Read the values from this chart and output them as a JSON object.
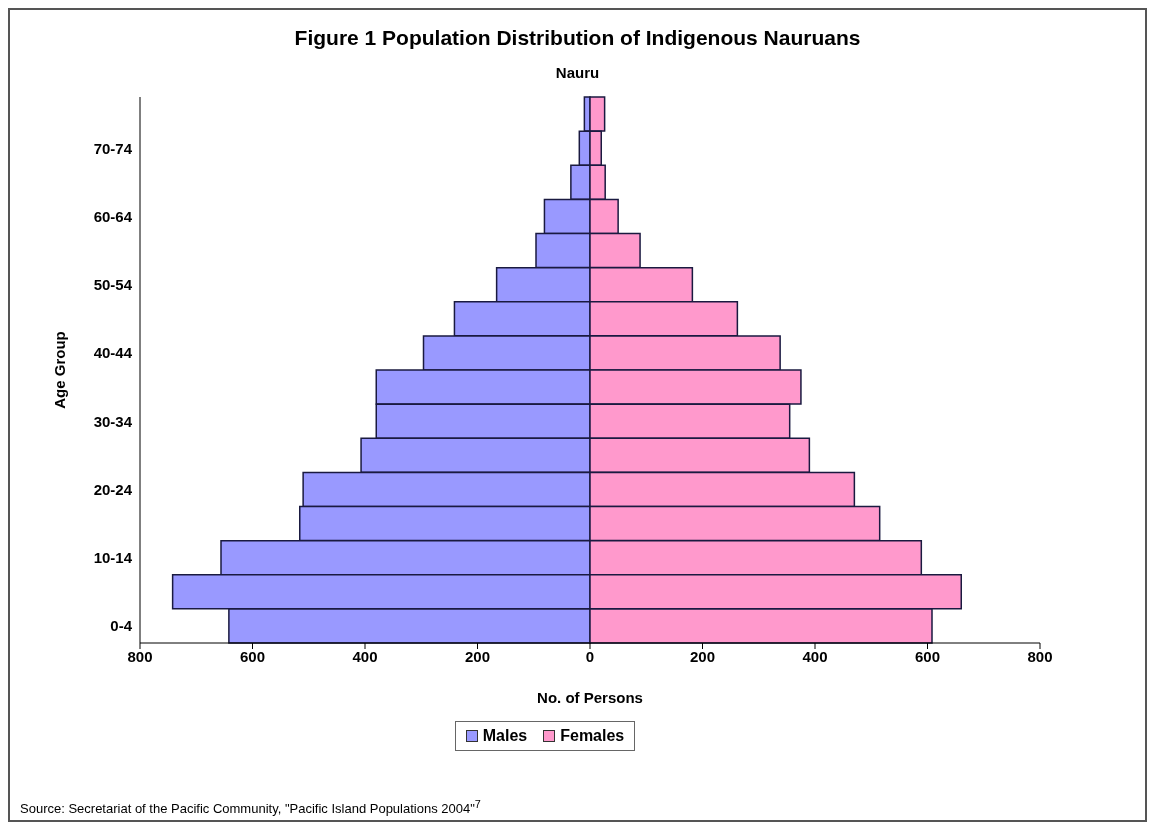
{
  "chart_data": {
    "type": "bar",
    "orientation": "horizontal",
    "stacked": true,
    "title": "Figure 1  Population Distribution of Indigenous Nauruans",
    "subtitle": "Nauru",
    "xlabel": "No. of Persons",
    "ylabel": "Age Group",
    "categories": [
      null,
      "70-74",
      null,
      "60-64",
      null,
      "50-54",
      null,
      "40-44",
      null,
      "30-34",
      null,
      "20-24",
      null,
      "10-14",
      null,
      "0-4"
    ],
    "series": [
      {
        "name": "Males",
        "color": "#9999ff",
        "values": [
          -10,
          -19,
          -34,
          -81,
          -96,
          -166,
          -241,
          -296,
          -380,
          -380,
          -407,
          -510,
          -516,
          -656,
          -742,
          -642
        ]
      },
      {
        "name": "Females",
        "color": "#ff99cc",
        "values": [
          26,
          20,
          27,
          50,
          89,
          182,
          262,
          338,
          375,
          355,
          390,
          470,
          515,
          589,
          660,
          608
        ]
      }
    ],
    "xlim": [
      -800,
      800
    ],
    "xticks": [
      {
        "value": -800,
        "label": "800"
      },
      {
        "value": -600,
        "label": "600"
      },
      {
        "value": -400,
        "label": "400"
      },
      {
        "value": -200,
        "label": "200"
      },
      0,
      200,
      400,
      600,
      800
    ],
    "grid": false,
    "legend": "bottom",
    "annotations": [
      "Source: Secretariat of the Pacific Community, \"Pacific Island Populations 2004\"$^{7}$"
    ]
  }
}
